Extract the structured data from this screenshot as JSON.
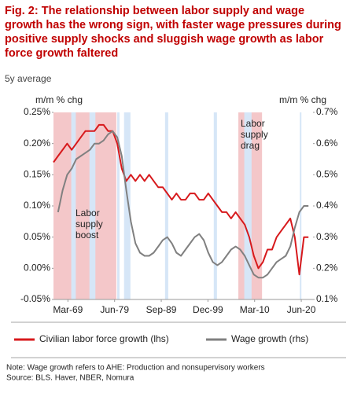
{
  "chart_data": {
    "type": "line",
    "title": "Fig. 2: The relationship between labor supply and wage growth has the wrong sign, with faster wage pressures during positive supply shocks and sluggish wage growth as labor force growth faltered",
    "subtitle": "5y average",
    "y_label": "m/m % chg",
    "y2_label": "m/m % chg",
    "x": [
      1966,
      1967,
      1968,
      1969,
      1970,
      1971,
      1972,
      1973,
      1974,
      1975,
      1976,
      1977,
      1978,
      1979,
      1980,
      1981,
      1982,
      1983,
      1984,
      1985,
      1986,
      1987,
      1988,
      1989,
      1990,
      1991,
      1992,
      1993,
      1994,
      1995,
      1996,
      1997,
      1998,
      1999,
      2000,
      2001,
      2002,
      2003,
      2004,
      2005,
      2006,
      2007,
      2008,
      2009,
      2010,
      2011,
      2012,
      2013,
      2014,
      2015,
      2016,
      2017,
      2018,
      2019,
      2020,
      2021,
      2022
    ],
    "series": [
      {
        "name": "Civilian labor force growth (lhs)",
        "color": "#d7191c",
        "axis": "y",
        "values": [
          0.17,
          0.18,
          0.19,
          0.2,
          0.19,
          0.2,
          0.21,
          0.22,
          0.22,
          0.22,
          0.23,
          0.23,
          0.22,
          0.22,
          0.2,
          0.16,
          0.14,
          0.15,
          0.14,
          0.15,
          0.14,
          0.15,
          0.14,
          0.13,
          0.13,
          0.12,
          0.11,
          0.12,
          0.11,
          0.11,
          0.12,
          0.12,
          0.11,
          0.11,
          0.12,
          0.11,
          0.1,
          0.09,
          0.09,
          0.08,
          0.09,
          0.08,
          0.07,
          0.05,
          0.02,
          0.0,
          0.01,
          0.03,
          0.03,
          0.05,
          0.06,
          0.07,
          0.08,
          0.05,
          -0.01,
          0.05,
          0.05
        ]
      },
      {
        "name": "Wage growth (rhs)",
        "color": "#808080",
        "axis": "y2",
        "values": [
          null,
          0.38,
          0.45,
          0.5,
          0.52,
          0.55,
          0.56,
          0.57,
          0.58,
          0.6,
          0.6,
          0.61,
          0.63,
          0.64,
          0.62,
          0.56,
          0.45,
          0.35,
          0.28,
          0.25,
          0.24,
          0.24,
          0.25,
          0.27,
          0.29,
          0.3,
          0.28,
          0.25,
          0.24,
          0.26,
          0.28,
          0.3,
          0.31,
          0.29,
          0.25,
          0.22,
          0.21,
          0.22,
          0.24,
          0.26,
          0.27,
          0.26,
          0.24,
          0.21,
          0.18,
          0.17,
          0.17,
          0.18,
          0.2,
          0.22,
          0.23,
          0.24,
          0.27,
          0.33,
          0.38,
          0.4,
          0.4
        ]
      }
    ],
    "xlim": [
      1966,
      2023
    ],
    "xticks": [
      {
        "value": 1969.17,
        "label": "Mar-69"
      },
      {
        "value": 1979.42,
        "label": "Jun-79"
      },
      {
        "value": 1989.67,
        "label": "Sep-89"
      },
      {
        "value": 1999.92,
        "label": "Dec-99"
      },
      {
        "value": 2010.17,
        "label": "Mar-10"
      },
      {
        "value": 2020.42,
        "label": "Jun-20"
      }
    ],
    "ylim": [
      -0.05,
      0.25
    ],
    "yticks": [
      {
        "value": -0.05,
        "label": "-0.05%"
      },
      {
        "value": 0,
        "label": "0.00%"
      },
      {
        "value": 0.05,
        "label": "0.05%"
      },
      {
        "value": 0.1,
        "label": "0.10%"
      },
      {
        "value": 0.15,
        "label": "0.15%"
      },
      {
        "value": 0.2,
        "label": "0.20%"
      },
      {
        "value": 0.25,
        "label": "0.25%"
      }
    ],
    "y2lim": [
      0.1,
      0.7
    ],
    "y2ticks": [
      {
        "value": 0.1,
        "label": "0.1%"
      },
      {
        "value": 0.2,
        "label": "0.2%"
      },
      {
        "value": 0.3,
        "label": "0.3%"
      },
      {
        "value": 0.4,
        "label": "0.4%"
      },
      {
        "value": 0.5,
        "label": "0.5%"
      },
      {
        "value": 0.6,
        "label": "0.6%"
      },
      {
        "value": 0.7,
        "label": "0.7%"
      }
    ],
    "regimes": [
      {
        "start": 1966,
        "end": 1979.8,
        "color": "#f4c7c9",
        "lines": [
          "Labor",
          "supply",
          "boost"
        ]
      },
      {
        "start": 2006.6,
        "end": 2011.8,
        "color": "#f4c7c9",
        "lines": [
          "Labor",
          "supply",
          "drag"
        ]
      }
    ],
    "recessions": {
      "color": "#d6e6f7",
      "periods": [
        [
          1969.9,
          1970.9
        ],
        [
          1973.9,
          1975.2
        ],
        [
          1980.0,
          1980.5
        ],
        [
          1981.5,
          1982.9
        ],
        [
          1990.5,
          1991.2
        ],
        [
          2001.2,
          2001.9
        ],
        [
          2007.9,
          2009.5
        ],
        [
          2020.1,
          2020.4
        ]
      ]
    },
    "notes": [
      "Note: Wage growth refers to AHE: Production and nonsupervisory workers",
      "Source: BLS. Haver, NBER, Nomura"
    ]
  }
}
